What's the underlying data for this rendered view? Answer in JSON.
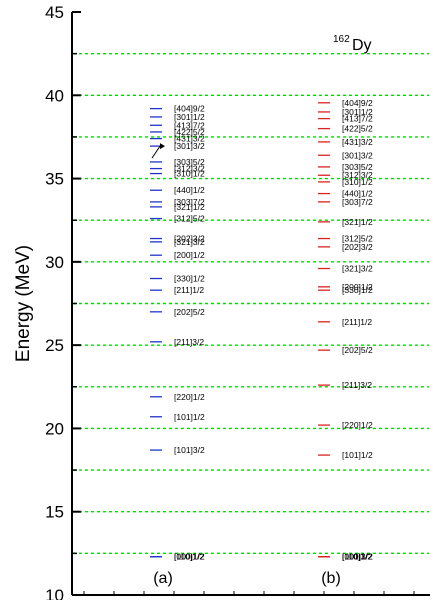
{
  "chart_data": {
    "type": "scatter",
    "title": "",
    "nucleus": {
      "mass": "162",
      "symbol": "Dy"
    },
    "ylabel": "Energy (MeV)",
    "ylim": [
      10,
      45
    ],
    "yticks": [
      10,
      15,
      20,
      25,
      30,
      35,
      40,
      45
    ],
    "grid": {
      "style": "dashed",
      "color": "#00dd00",
      "values": [
        12.5,
        15,
        17.5,
        20,
        22.5,
        25,
        27.5,
        30,
        32.5,
        35,
        37.5,
        40,
        42.5
      ]
    },
    "panels": [
      {
        "label": "(a)",
        "color": "#2233cc",
        "levels": [
          {
            "energy": 39.2,
            "label": "[404]9/2"
          },
          {
            "energy": 38.7,
            "label": "[301]1/2"
          },
          {
            "energy": 38.2,
            "label": "[413]7/2"
          },
          {
            "energy": 37.8,
            "label": "[422]5/2"
          },
          {
            "energy": 37.4,
            "label": "[431]3/2"
          },
          {
            "energy": 36.95,
            "label": "[301]3/2"
          },
          {
            "energy": 36.0,
            "label": "[303]5/2"
          },
          {
            "energy": 35.6,
            "label": "[312]3/2"
          },
          {
            "energy": 35.3,
            "label": "[310]1/2"
          },
          {
            "energy": 34.3,
            "label": "[440]1/2"
          },
          {
            "energy": 33.6,
            "label": "[303]7/2"
          },
          {
            "energy": 33.3,
            "label": "[321]1/2"
          },
          {
            "energy": 32.6,
            "label": "[312]5/2"
          },
          {
            "energy": 31.4,
            "label": "[202]3/2"
          },
          {
            "energy": 31.2,
            "label": "[321]3/2"
          },
          {
            "energy": 30.4,
            "label": "[200]1/2"
          },
          {
            "energy": 29.0,
            "label": "[330]1/2"
          },
          {
            "energy": 28.3,
            "label": "[211]1/2"
          },
          {
            "energy": 27.0,
            "label": "[202]5/2"
          },
          {
            "energy": 25.2,
            "label": "[211]3/2"
          },
          {
            "energy": 21.9,
            "label": "[220]1/2"
          },
          {
            "energy": 20.7,
            "label": "[101]1/2"
          },
          {
            "energy": 18.7,
            "label": "[101]3/2"
          },
          {
            "energy": 12.3,
            "label": "[110]1/2"
          },
          {
            "energy": 12.3,
            "label": "[000]1/2"
          }
        ]
      },
      {
        "label": "(b)",
        "color": "#dd2222",
        "levels": [
          {
            "energy": 39.55,
            "label": "[404]9/2"
          },
          {
            "energy": 39.0,
            "label": "[301]1/2"
          },
          {
            "energy": 38.6,
            "label": "[413]7/2"
          },
          {
            "energy": 38.0,
            "label": "[422]5/2"
          },
          {
            "energy": 37.2,
            "label": "[431]3/2"
          },
          {
            "energy": 36.4,
            "label": "[301]3/2"
          },
          {
            "energy": 35.7,
            "label": "[303]5/2"
          },
          {
            "energy": 35.2,
            "label": "[312]3/2"
          },
          {
            "energy": 34.8,
            "label": "[310]1/2"
          },
          {
            "energy": 34.1,
            "label": "[440]1/2"
          },
          {
            "energy": 33.6,
            "label": "[303]7/2"
          },
          {
            "energy": 32.4,
            "label": "[321]1/2"
          },
          {
            "energy": 31.4,
            "label": "[312]5/2"
          },
          {
            "energy": 30.9,
            "label": "[202]3/2"
          },
          {
            "energy": 29.6,
            "label": "[321]3/2"
          },
          {
            "energy": 28.5,
            "label": "[200]1/2"
          },
          {
            "energy": 28.3,
            "label": "[330]1/2"
          },
          {
            "energy": 26.4,
            "label": "[211]1/2"
          },
          {
            "energy": 24.7,
            "label": "[202]5/2"
          },
          {
            "energy": 22.6,
            "label": "[211]3/2"
          },
          {
            "energy": 20.2,
            "label": "[220]1/2"
          },
          {
            "energy": 18.4,
            "label": "[101]1/2"
          },
          {
            "energy": 12.3,
            "label": "[101]3/2"
          },
          {
            "energy": 12.3,
            "label": "[110]1/2"
          },
          {
            "energy": 12.3,
            "label": "[000]1/2"
          }
        ]
      }
    ]
  }
}
